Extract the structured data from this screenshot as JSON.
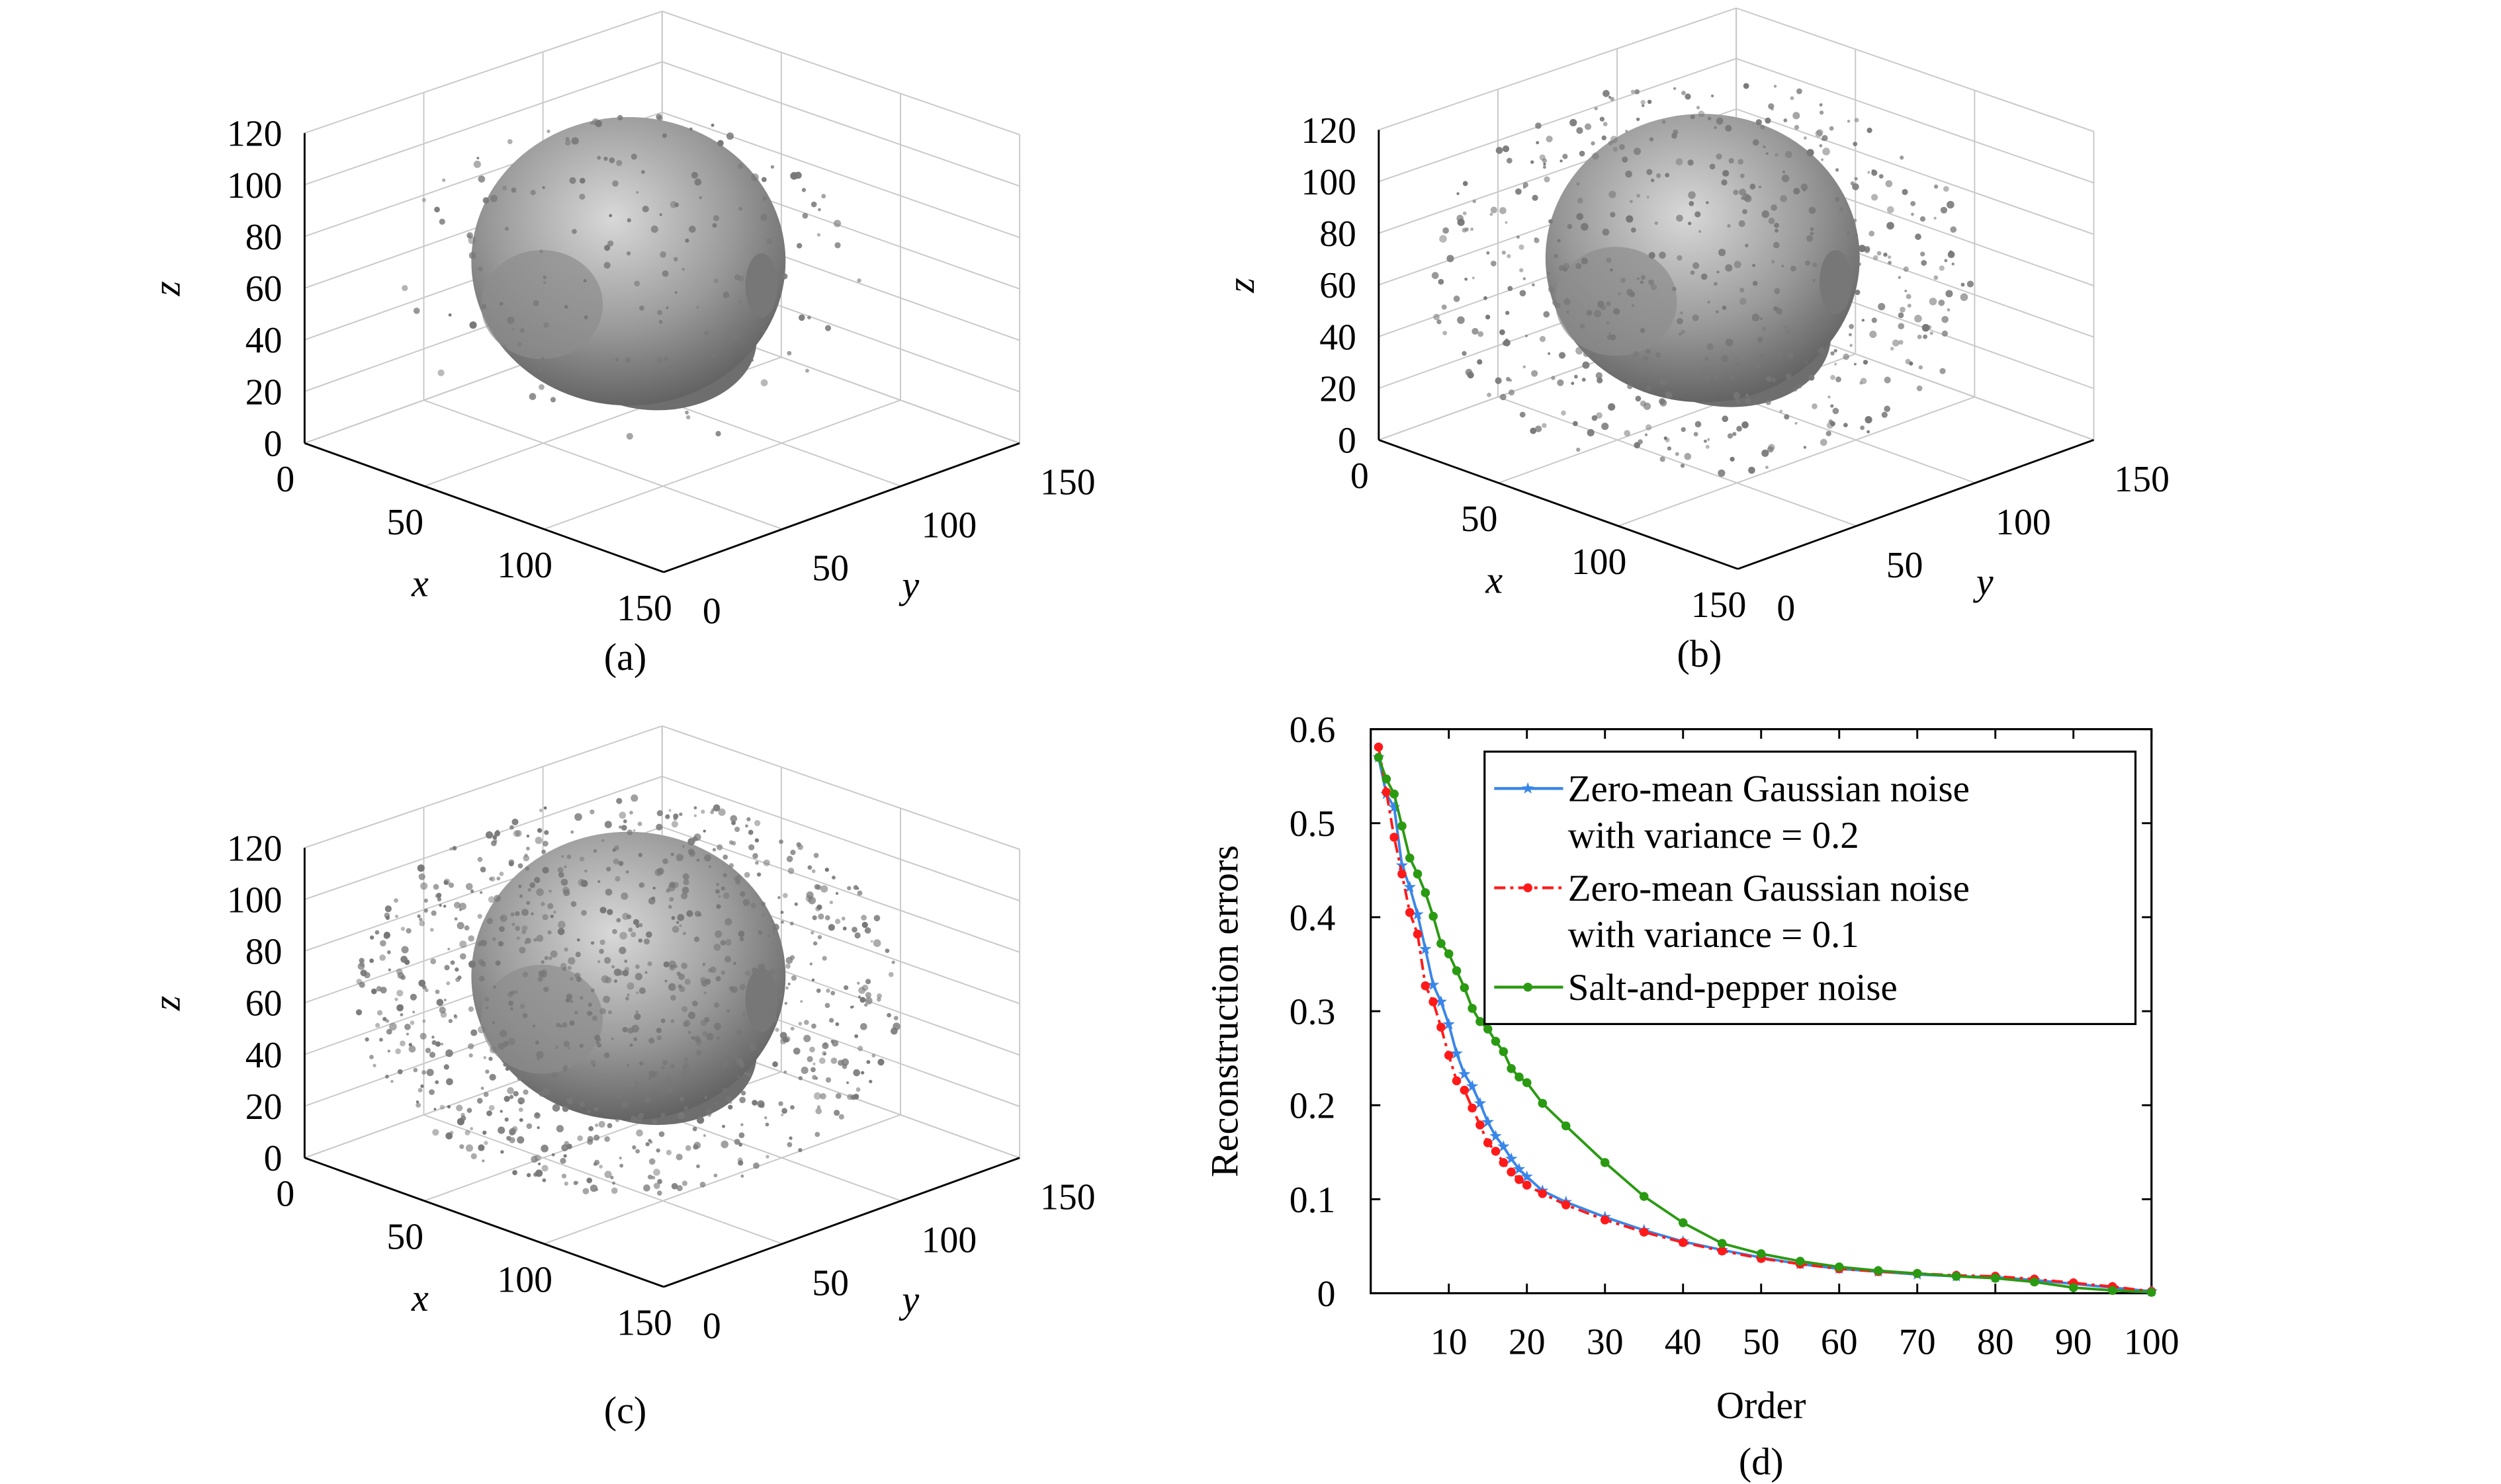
{
  "panels3d": [
    {
      "caption": "(a)",
      "xlabel": "x",
      "ylabel": "y",
      "zlabel": "z",
      "noise_level": "low"
    },
    {
      "caption": "(b)",
      "xlabel": "x",
      "ylabel": "y",
      "zlabel": "z",
      "noise_level": "medium"
    },
    {
      "caption": "(c)",
      "xlabel": "x",
      "ylabel": "y",
      "zlabel": "z",
      "noise_level": "high"
    }
  ],
  "axis3d": {
    "z_ticks": [
      "0",
      "20",
      "40",
      "60",
      "80",
      "100",
      "120"
    ],
    "x_ticks": [
      "0",
      "50",
      "100",
      "150"
    ],
    "y_ticks": [
      "0",
      "50",
      "100",
      "150"
    ]
  },
  "chart_data": {
    "type": "line",
    "caption": "(d)",
    "xlabel": "Order",
    "ylabel": "Reconstruction errors",
    "xlim": [
      0,
      100
    ],
    "ylim": [
      0,
      0.6
    ],
    "x_ticks": [
      "10",
      "20",
      "30",
      "40",
      "50",
      "60",
      "70",
      "80",
      "90",
      "100"
    ],
    "y_ticks": [
      "0",
      "0.1",
      "0.2",
      "0.3",
      "0.4",
      "0.5",
      "0.6"
    ],
    "grid": false,
    "legend_position": "top-right",
    "x": [
      1,
      2,
      3,
      4,
      5,
      6,
      7,
      8,
      9,
      10,
      11,
      12,
      13,
      14,
      15,
      16,
      17,
      18,
      19,
      20,
      22,
      25,
      30,
      35,
      40,
      45,
      50,
      55,
      60,
      65,
      70,
      75,
      80,
      85,
      90,
      95,
      100
    ],
    "series": [
      {
        "name": "Zero-mean Gaussian noise with variance = 0.2",
        "legend_lines": [
          "Zero-mean Gaussian noise",
          "with variance = 0.2"
        ],
        "color": "#3a86e8",
        "marker": "star",
        "dash": "solid",
        "values": [
          0.57,
          0.531,
          0.517,
          0.455,
          0.432,
          0.403,
          0.366,
          0.328,
          0.31,
          0.286,
          0.255,
          0.233,
          0.22,
          0.202,
          0.182,
          0.167,
          0.156,
          0.143,
          0.132,
          0.124,
          0.109,
          0.097,
          0.081,
          0.067,
          0.055,
          0.046,
          0.038,
          0.031,
          0.026,
          0.023,
          0.02,
          0.018,
          0.017,
          0.014,
          0.01,
          0.006,
          0.002
        ]
      },
      {
        "name": "Zero-mean Gaussian noise with variance = 0.1",
        "legend_lines": [
          "Zero-mean Gaussian noise",
          "with variance = 0.1"
        ],
        "color": "#ff1a1a",
        "marker": "dot",
        "dash": "dashdot",
        "values": [
          0.581,
          0.533,
          0.485,
          0.446,
          0.405,
          0.382,
          0.327,
          0.31,
          0.283,
          0.253,
          0.226,
          0.216,
          0.197,
          0.179,
          0.16,
          0.151,
          0.139,
          0.129,
          0.121,
          0.115,
          0.106,
          0.094,
          0.078,
          0.065,
          0.054,
          0.045,
          0.037,
          0.031,
          0.026,
          0.023,
          0.021,
          0.019,
          0.018,
          0.015,
          0.011,
          0.007,
          0.002
        ]
      },
      {
        "name": "Salt-and-pepper noise",
        "legend_lines": [
          "Salt-and-pepper noise"
        ],
        "color": "#2a9a12",
        "marker": "dot",
        "dash": "solid",
        "values": [
          0.57,
          0.547,
          0.531,
          0.497,
          0.463,
          0.446,
          0.426,
          0.401,
          0.372,
          0.361,
          0.343,
          0.325,
          0.303,
          0.289,
          0.281,
          0.268,
          0.257,
          0.239,
          0.23,
          0.224,
          0.202,
          0.178,
          0.139,
          0.103,
          0.075,
          0.053,
          0.042,
          0.034,
          0.028,
          0.024,
          0.021,
          0.018,
          0.016,
          0.012,
          0.006,
          0.003,
          0.001
        ]
      }
    ]
  }
}
